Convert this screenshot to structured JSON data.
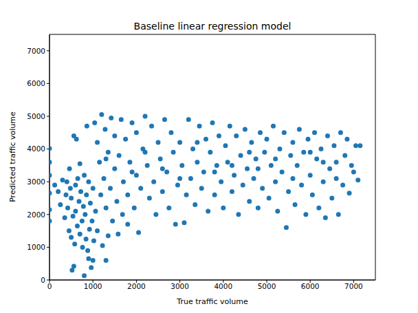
{
  "chart_data": {
    "type": "scatter",
    "title": "Baseline linear regression model",
    "x_label": "True traffic volume",
    "y_label": "Predicted traffic volume",
    "color": "#1f77b4",
    "marker": "circle",
    "grid": false,
    "xlim": [
      0,
      7500
    ],
    "ylim": [
      0,
      7500
    ],
    "xticks": [
      0,
      1000,
      2000,
      3000,
      4000,
      5000,
      6000,
      7000
    ],
    "yticks": [
      0,
      1000,
      2000,
      3000,
      4000,
      5000,
      6000,
      7000
    ],
    "x": [
      0,
      0,
      0,
      0,
      0,
      0,
      120,
      200,
      250,
      300,
      350,
      380,
      400,
      420,
      450,
      460,
      480,
      500,
      500,
      520,
      540,
      560,
      560,
      580,
      600,
      600,
      620,
      640,
      650,
      680,
      700,
      700,
      720,
      750,
      760,
      780,
      800,
      800,
      820,
      840,
      850,
      860,
      880,
      900,
      900,
      920,
      940,
      960,
      980,
      1000,
      1000,
      1020,
      1040,
      1060,
      1100,
      1100,
      1150,
      1180,
      1200,
      1220,
      1250,
      1280,
      1300,
      1300,
      1350,
      1350,
      1400,
      1420,
      1450,
      1500,
      1500,
      1550,
      1580,
      1600,
      1650,
      1680,
      1700,
      1750,
      1800,
      1800,
      1850,
      1900,
      1950,
      2000,
      2000,
      2050,
      2100,
      2150,
      2200,
      2250,
      2300,
      2350,
      2400,
      2450,
      2500,
      2550,
      2600,
      2650,
      2700,
      2750,
      2800,
      2850,
      2900,
      2950,
      3000,
      3050,
      3100,
      3150,
      3200,
      3250,
      3300,
      3350,
      3400,
      3450,
      3500,
      3550,
      3600,
      3650,
      3700,
      3750,
      3800,
      3850,
      3900,
      3950,
      4000,
      4050,
      4100,
      4150,
      4200,
      4250,
      4300,
      4350,
      4400,
      4450,
      4500,
      4550,
      4600,
      4650,
      4700,
      4750,
      4800,
      4850,
      4900,
      4950,
      5000,
      5050,
      5100,
      5150,
      5200,
      5250,
      5300,
      5350,
      5400,
      5450,
      5500,
      5550,
      5600,
      5650,
      5700,
      5750,
      5800,
      5850,
      5900,
      5950,
      6000,
      6050,
      6100,
      6150,
      6200,
      6250,
      6300,
      6350,
      6400,
      6450,
      6500,
      6550,
      6600,
      6650,
      6700,
      6750,
      6800,
      6850,
      6900,
      6950,
      7000,
      7050,
      7100,
      7150,
      1300,
      2200,
      3000,
      3800,
      4600,
      5200,
      6000,
      6600,
      2600,
      5600,
      4200,
      1900,
      3400,
      4800,
      6300
    ],
    "values": [
      4020,
      3600,
      3200,
      2650,
      2150,
      1800,
      2900,
      2700,
      2300,
      3050,
      1900,
      2600,
      3000,
      2200,
      1500,
      3400,
      2800,
      1300,
      2500,
      300,
      1950,
      420,
      4400,
      1100,
      2100,
      2900,
      4300,
      1650,
      3100,
      2400,
      1400,
      3550,
      2700,
      1800,
      1000,
      2250,
      130,
      3200,
      2000,
      1250,
      2600,
      4700,
      900,
      650,
      3000,
      1550,
      2350,
      380,
      1800,
      600,
      2800,
      1200,
      4800,
      2100,
      1500,
      4200,
      3600,
      2600,
      5050,
      1050,
      3100,
      4600,
      600,
      2200,
      1350,
      3900,
      2800,
      4950,
      1800,
      3400,
      4400,
      2400,
      1400,
      3800,
      4900,
      2000,
      3000,
      4300,
      2600,
      1700,
      3600,
      4800,
      2200,
      3200,
      4500,
      1450,
      2800,
      4000,
      5000,
      3500,
      2500,
      4700,
      3000,
      2000,
      4200,
      3700,
      2700,
      4900,
      3300,
      2200,
      4500,
      3900,
      1700,
      2900,
      4200,
      3500,
      1750,
      2600,
      4900,
      3100,
      4000,
      2300,
      3600,
      4700,
      2800,
      3300,
      4300,
      2100,
      3900,
      4800,
      2600,
      3500,
      4400,
      3000,
      2200,
      4100,
      3600,
      4700,
      2700,
      3200,
      4400,
      2000,
      3800,
      2900,
      4600,
      3400,
      2400,
      4200,
      3100,
      3700,
      2200,
      4500,
      2800,
      3900,
      4300,
      2500,
      3500,
      4700,
      3000,
      2100,
      4000,
      3300,
      4500,
      1600,
      2700,
      3800,
      4200,
      2300,
      3500,
      4600,
      2900,
      3900,
      2000,
      4300,
      3200,
      2600,
      4500,
      3700,
      2200,
      4000,
      3000,
      1900,
      4400,
      3400,
      2500,
      4100,
      3600,
      2000,
      4500,
      2900,
      3800,
      4300,
      2650,
      3500,
      3300,
      4100,
      3050,
      4100,
      3700,
      3900,
      3100,
      3300,
      3900,
      3700,
      3900,
      3100,
      3400,
      3100,
      3500,
      3300,
      4200,
      3400,
      3600
    ]
  }
}
